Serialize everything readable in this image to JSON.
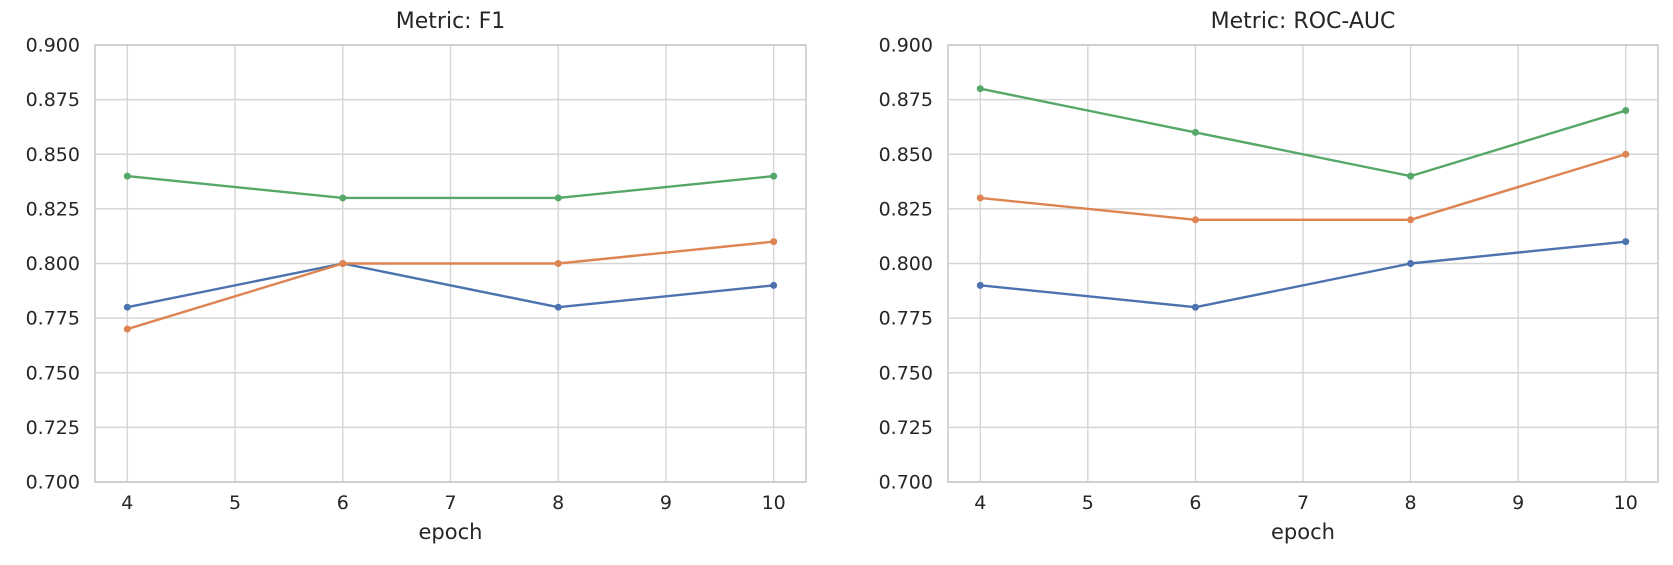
{
  "theme": {
    "background": "#ffffff",
    "grid_color": "#d5d5d5",
    "spine_color": "#c9c9c9",
    "text_color": "#262626"
  },
  "chart_data": [
    {
      "type": "line",
      "title": "Metric: F1",
      "xlabel": "epoch",
      "ylabel": "",
      "x": [
        4,
        6,
        8,
        10
      ],
      "xticks": [
        4,
        5,
        6,
        7,
        8,
        9,
        10
      ],
      "ytick_labels": [
        "0.700",
        "0.725",
        "0.750",
        "0.775",
        "0.800",
        "0.825",
        "0.850",
        "0.875",
        "0.900"
      ],
      "xlim": [
        3.7,
        10.3
      ],
      "ylim": [
        0.7,
        0.9
      ],
      "grid": true,
      "legend": "none",
      "series": [
        {
          "name": "series-blue",
          "color": "#4C72B0",
          "values": [
            0.78,
            0.8,
            0.78,
            0.79
          ]
        },
        {
          "name": "series-orange",
          "color": "#DD8452",
          "values": [
            0.77,
            0.8,
            0.8,
            0.81
          ]
        },
        {
          "name": "series-green",
          "color": "#55A868",
          "values": [
            0.84,
            0.83,
            0.83,
            0.84
          ]
        }
      ]
    },
    {
      "type": "line",
      "title": "Metric: ROC-AUC",
      "xlabel": "epoch",
      "ylabel": "",
      "x": [
        4,
        6,
        8,
        10
      ],
      "xticks": [
        4,
        5,
        6,
        7,
        8,
        9,
        10
      ],
      "ytick_labels": [
        "0.700",
        "0.725",
        "0.750",
        "0.775",
        "0.800",
        "0.825",
        "0.850",
        "0.875",
        "0.900"
      ],
      "xlim": [
        3.7,
        10.3
      ],
      "ylim": [
        0.7,
        0.9
      ],
      "grid": true,
      "legend": "none",
      "series": [
        {
          "name": "series-blue",
          "color": "#4C72B0",
          "values": [
            0.79,
            0.78,
            0.8,
            0.81
          ]
        },
        {
          "name": "series-orange",
          "color": "#DD8452",
          "values": [
            0.83,
            0.82,
            0.82,
            0.85
          ]
        },
        {
          "name": "series-green",
          "color": "#55A868",
          "values": [
            0.88,
            0.86,
            0.84,
            0.87
          ]
        }
      ]
    }
  ]
}
